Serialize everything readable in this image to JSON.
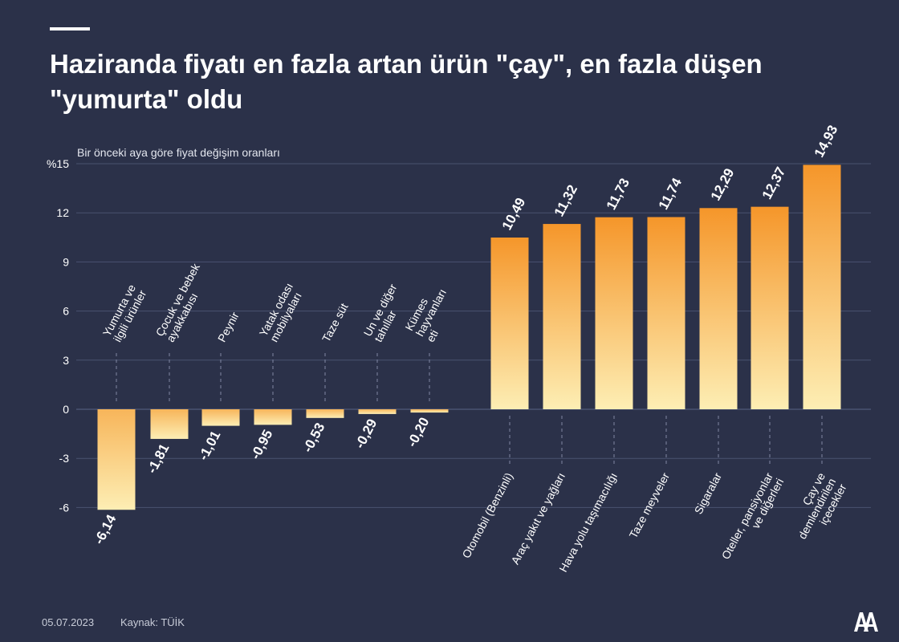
{
  "header": {
    "title": "Haziranda fiyatı en fazla artan ürün \"çay\", en fazla düşen \"yumurta\" oldu"
  },
  "footer": {
    "date": "05.07.2023",
    "source": "Kaynak: TÜİK"
  },
  "logo": {
    "text": "AA"
  },
  "colors": {
    "background": "#2b3149",
    "bar_top": "#f5962a",
    "bar_bottom": "#fdeeb4",
    "grid": "#4a5270",
    "text": "#ffffff"
  },
  "chart_data": {
    "type": "bar",
    "title": "Haziranda fiyatı en fazla artan ürün \"çay\", en fazla düşen \"yumurta\" oldu",
    "subtitle": "Bir önceki aya göre fiyat değişim oranları",
    "xlabel": "",
    "ylabel": "",
    "ylim": [
      -6,
      15
    ],
    "yticks": [
      "-6",
      "-3",
      "0",
      "3",
      "6",
      "9",
      "12",
      "%15"
    ],
    "ytick_values": [
      -6,
      -3,
      0,
      3,
      6,
      9,
      12,
      15
    ],
    "grid": true,
    "categories": [
      [
        "Yumurta ve",
        "ilgili ürünler"
      ],
      [
        "Çocuk ve bebek",
        "ayakkabısı"
      ],
      [
        "Peynir"
      ],
      [
        "Yatak odası",
        "mobilyaları"
      ],
      [
        "Taze süt"
      ],
      [
        "Un ve diğer",
        "tahıllar"
      ],
      [
        "Kümes",
        "hayvanları",
        "eti"
      ],
      [
        "Otomobil (Benzinli)"
      ],
      [
        "Araç yakıt ve yağları"
      ],
      [
        "Hava yolu taşımacılığı"
      ],
      [
        "Taze meyveler"
      ],
      [
        "Sigaralar"
      ],
      [
        "Oteller, pansiyonlar",
        "ve diğerleri"
      ],
      [
        "Çay ve",
        "demlendirilen",
        "içecekler"
      ]
    ],
    "values": [
      -6.14,
      -1.81,
      -1.01,
      -0.95,
      -0.53,
      -0.29,
      -0.2,
      10.49,
      11.32,
      11.73,
      11.74,
      12.29,
      12.37,
      14.93
    ],
    "value_labels": [
      "-6,14",
      "-1,81",
      "-1,01",
      "-0,95",
      "-0,53",
      "-0,29",
      "-0,20",
      "10,49",
      "11,32",
      "11,73",
      "11,74",
      "12,29",
      "12,37",
      "14,93"
    ]
  }
}
